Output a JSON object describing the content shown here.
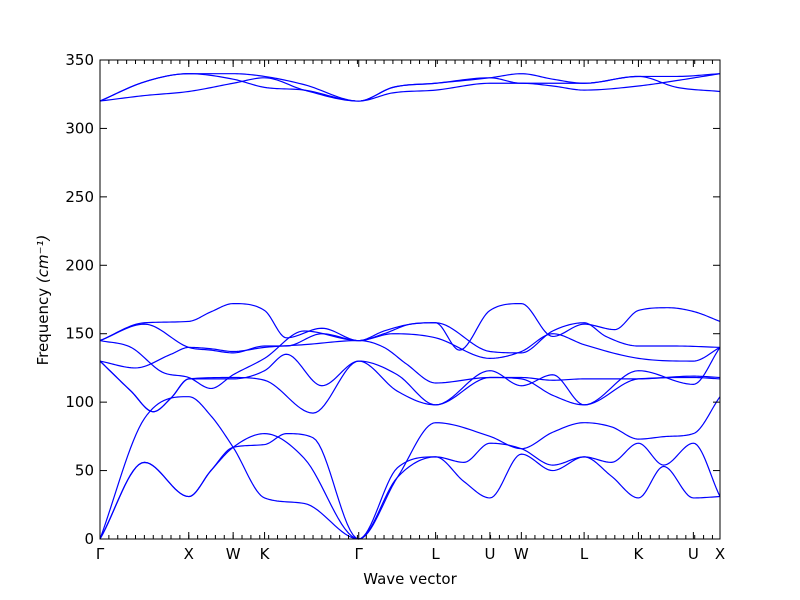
{
  "chart_data": {
    "type": "line",
    "xlabel": "Wave vector",
    "ylabel": "Frequency",
    "ylabel_unit": "(cm⁻¹)",
    "ylim": [
      0,
      350
    ],
    "yticks": [
      0,
      50,
      100,
      150,
      200,
      250,
      300,
      350
    ],
    "grid": false,
    "legend": "none",
    "line_color": "#0000ff",
    "x_points": [
      {
        "label": "Γ",
        "x": 0.0
      },
      {
        "label": "X",
        "x": 1.0
      },
      {
        "label": "W",
        "x": 1.5
      },
      {
        "label": "K",
        "x": 1.854
      },
      {
        "label": "Γ",
        "x": 2.915
      },
      {
        "label": "L",
        "x": 3.781
      },
      {
        "label": "U",
        "x": 4.393
      },
      {
        "label": "W",
        "x": 4.747
      },
      {
        "label": "L",
        "x": 5.454
      },
      {
        "label": "K",
        "x": 6.066
      },
      {
        "label": "U",
        "x": 6.685
      },
      {
        "label": "X",
        "x": 6.985
      }
    ],
    "series": [
      {
        "x": [
          0,
          0.5,
          1.0,
          1.25,
          1.5,
          1.854,
          2.3,
          2.915,
          3.35,
          3.781,
          4.393,
          4.747,
          5.1,
          5.454,
          5.76,
          6.066,
          6.4,
          6.685,
          6.985
        ],
        "values": [
          0,
          56,
          31,
          50,
          67,
          77,
          59,
          0,
          45,
          85,
          75,
          66,
          78,
          85,
          82,
          73,
          75,
          77,
          104
        ]
      },
      {
        "x": [
          0,
          0.5,
          1.0,
          1.25,
          1.5,
          1.854,
          2.1,
          2.4,
          2.915,
          3.35,
          3.781,
          4.1,
          4.393,
          4.747,
          5.1,
          5.454,
          5.76,
          6.066,
          6.35,
          6.685,
          6.985
        ],
        "values": [
          0,
          56,
          31,
          50,
          67,
          69,
          77,
          74,
          0,
          52,
          60,
          56,
          70,
          66,
          54,
          60,
          56,
          70,
          54,
          70,
          31
        ]
      },
      {
        "x": [
          0,
          0.5,
          1.0,
          1.25,
          1.5,
          1.854,
          2.3,
          2.915,
          3.35,
          3.781,
          4.1,
          4.393,
          4.747,
          5.1,
          5.454,
          5.76,
          6.066,
          6.35,
          6.685,
          6.985
        ],
        "values": [
          0,
          88,
          104,
          90,
          67,
          30,
          26,
          0,
          45,
          60,
          42,
          30,
          62,
          50,
          60,
          46,
          30,
          53,
          30,
          31
        ]
      },
      {
        "x": [
          0,
          0.35,
          0.6,
          0.8,
          1.0,
          1.5,
          1.854,
          2.4,
          2.915,
          3.35,
          3.781,
          4.393,
          4.747,
          5.1,
          5.454,
          6.066,
          6.685,
          6.985
        ],
        "values": [
          130,
          108,
          93,
          103,
          117,
          118,
          116,
          92,
          130,
          108,
          98,
          118,
          117,
          105,
          98,
          117,
          118,
          117
        ]
      },
      {
        "x": [
          0,
          0.35,
          0.6,
          0.8,
          1.0,
          1.5,
          1.854,
          2.1,
          2.5,
          2.915,
          3.35,
          3.781,
          4.393,
          4.747,
          5.1,
          5.454,
          6.066,
          6.685,
          6.985
        ],
        "values": [
          130,
          108,
          93,
          103,
          117,
          117,
          123,
          135,
          112,
          130,
          120,
          98,
          123,
          112,
          120,
          98,
          123,
          113,
          140
        ]
      },
      {
        "x": [
          0,
          0.4,
          0.8,
          1.0,
          1.25,
          1.5,
          1.854,
          2.3,
          2.915,
          3.2,
          3.45,
          3.781,
          4.393,
          4.747,
          5.1,
          5.454,
          6.066,
          6.685,
          6.985
        ],
        "values": [
          130,
          125,
          135,
          140,
          139,
          137,
          140,
          142,
          145,
          140,
          128,
          114,
          118,
          118,
          116,
          117,
          117,
          119,
          118
        ]
      },
      {
        "x": [
          0,
          0.35,
          0.7,
          1.0,
          1.25,
          1.5,
          1.854,
          2.3,
          2.915,
          3.3,
          3.781,
          4.393,
          4.747,
          5.1,
          5.454,
          6.066,
          6.685,
          6.985
        ],
        "values": [
          145,
          140,
          122,
          118,
          110,
          120,
          132,
          152,
          145,
          150,
          147,
          132,
          137,
          150,
          142,
          132,
          130,
          140
        ]
      },
      {
        "x": [
          0,
          0.5,
          1.0,
          1.25,
          1.5,
          1.854,
          2.1,
          2.5,
          2.915,
          3.2,
          3.5,
          3.781,
          4.393,
          4.747,
          5.1,
          5.454,
          5.7,
          6.066,
          6.5,
          6.985
        ],
        "values": [
          145,
          157,
          140,
          138,
          136,
          141,
          141,
          150,
          145,
          152,
          157,
          158,
          137,
          136,
          152,
          158,
          148,
          141,
          141,
          140
        ]
      },
      {
        "x": [
          0,
          0.5,
          1.0,
          1.25,
          1.5,
          1.854,
          2.1,
          2.5,
          2.915,
          3.2,
          3.5,
          3.781,
          4.05,
          4.393,
          4.747,
          5.1,
          5.454,
          5.8,
          6.066,
          6.4,
          6.7,
          6.985
        ],
        "values": [
          145,
          158,
          159,
          166,
          172,
          167,
          147,
          154,
          145,
          150,
          157,
          158,
          138,
          167,
          172,
          148,
          157,
          153,
          167,
          169,
          166,
          159
        ]
      },
      {
        "x": [
          0,
          0.5,
          1.0,
          1.5,
          1.854,
          2.3,
          2.915,
          3.3,
          3.781,
          4.393,
          4.747,
          5.1,
          5.454,
          6.066,
          6.5,
          6.985
        ],
        "values": [
          320,
          324,
          327,
          333,
          337,
          328,
          320,
          326,
          328,
          333,
          333,
          331,
          328,
          331,
          335,
          340
        ]
      },
      {
        "x": [
          0,
          0.5,
          1.0,
          1.5,
          1.854,
          2.3,
          2.915,
          3.3,
          3.781,
          4.393,
          4.747,
          5.1,
          5.454,
          6.066,
          6.5,
          6.985
        ],
        "values": [
          320,
          334,
          340,
          336,
          330,
          328,
          320,
          330,
          333,
          337,
          340,
          336,
          333,
          338,
          338,
          340
        ]
      },
      {
        "x": [
          0,
          0.5,
          1.0,
          1.5,
          1.854,
          2.3,
          2.915,
          3.3,
          3.781,
          4.393,
          4.747,
          5.1,
          5.454,
          6.066,
          6.5,
          6.985
        ],
        "values": [
          320,
          334,
          340,
          340,
          338,
          332,
          320,
          330,
          333,
          337,
          333,
          333,
          333,
          338,
          330,
          327
        ]
      }
    ]
  }
}
